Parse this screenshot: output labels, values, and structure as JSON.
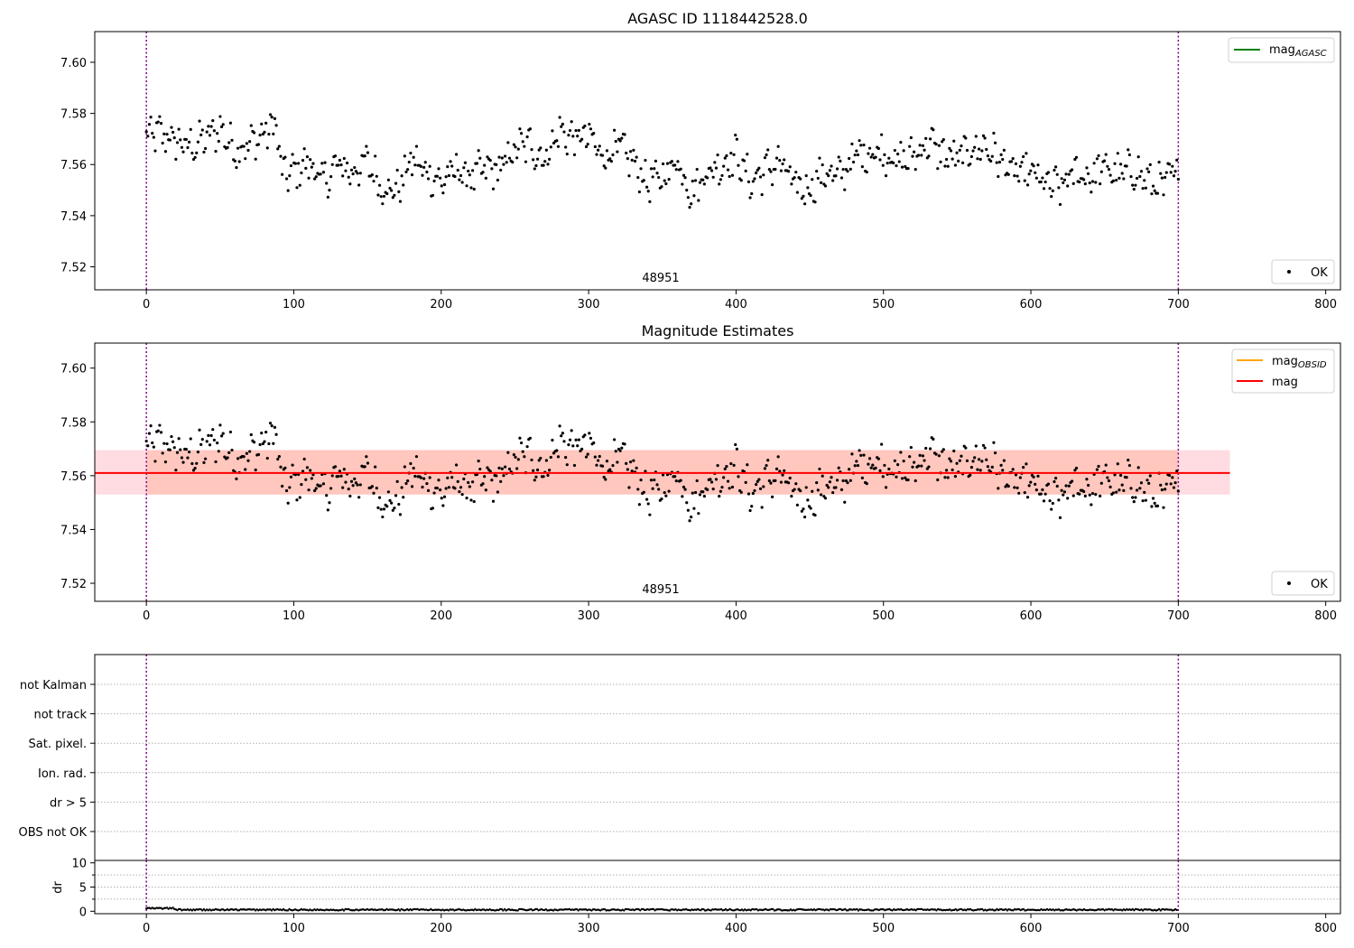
{
  "colors": {
    "points": "#000000",
    "vline": "#800080",
    "agasc_line": "#008000",
    "obsid_line": "#ffa500",
    "mag_line": "#ff0000",
    "band_outer": "#ffc0cb",
    "band_inner": "#ffa07a",
    "grid": "#b0b0b0"
  },
  "chart_data": [
    {
      "type": "scatter",
      "title": "AGASC ID 1118442528.0",
      "annotation": "48951",
      "xlim": [
        -35,
        810
      ],
      "ylim": [
        7.511,
        7.612
      ],
      "xticks": [
        0,
        100,
        200,
        300,
        400,
        500,
        600,
        700,
        800
      ],
      "xtick_labels": [
        "0",
        "100",
        "200",
        "300",
        "400",
        "500",
        "600",
        "700",
        "800"
      ],
      "yticks": [
        7.52,
        7.54,
        7.56,
        7.58,
        7.6
      ],
      "ytick_labels": [
        "7.52",
        "7.54",
        "7.56",
        "7.58",
        "7.60"
      ],
      "vlines": [
        0,
        700
      ],
      "legend_upper": [
        {
          "label": "mag",
          "subscript": "AGASC",
          "line_color": "#008000"
        }
      ],
      "legend_lower": [
        {
          "label": "OK",
          "marker": "dot"
        }
      ],
      "series": [
        {
          "name": "OK",
          "n_points": 700
        }
      ],
      "point_trend": [
        [
          0,
          7.571
        ],
        [
          10,
          7.572
        ],
        [
          20,
          7.569
        ],
        [
          30,
          7.567
        ],
        [
          40,
          7.57
        ],
        [
          50,
          7.574
        ],
        [
          60,
          7.566
        ],
        [
          70,
          7.568
        ],
        [
          80,
          7.572
        ],
        [
          88,
          7.576
        ],
        [
          92,
          7.556
        ],
        [
          100,
          7.557
        ],
        [
          110,
          7.561
        ],
        [
          120,
          7.553
        ],
        [
          130,
          7.56
        ],
        [
          140,
          7.557
        ],
        [
          150,
          7.561
        ],
        [
          160,
          7.551
        ],
        [
          170,
          7.55
        ],
        [
          180,
          7.562
        ],
        [
          190,
          7.557
        ],
        [
          200,
          7.553
        ],
        [
          210,
          7.558
        ],
        [
          220,
          7.555
        ],
        [
          230,
          7.558
        ],
        [
          240,
          7.558
        ],
        [
          250,
          7.566
        ],
        [
          260,
          7.568
        ],
        [
          270,
          7.562
        ],
        [
          280,
          7.573
        ],
        [
          290,
          7.57
        ],
        [
          300,
          7.571
        ],
        [
          310,
          7.563
        ],
        [
          320,
          7.567
        ],
        [
          330,
          7.561
        ],
        [
          340,
          7.553
        ],
        [
          350,
          7.555
        ],
        [
          360,
          7.562
        ],
        [
          370,
          7.549
        ],
        [
          380,
          7.557
        ],
        [
          390,
          7.56
        ],
        [
          400,
          7.564
        ],
        [
          410,
          7.553
        ],
        [
          420,
          7.558
        ],
        [
          430,
          7.561
        ],
        [
          440,
          7.551
        ],
        [
          450,
          7.551
        ],
        [
          460,
          7.557
        ],
        [
          470,
          7.555
        ],
        [
          480,
          7.563
        ],
        [
          490,
          7.565
        ],
        [
          500,
          7.565
        ],
        [
          510,
          7.561
        ],
        [
          520,
          7.563
        ],
        [
          530,
          7.569
        ],
        [
          540,
          7.564
        ],
        [
          550,
          7.562
        ],
        [
          560,
          7.566
        ],
        [
          570,
          7.567
        ],
        [
          580,
          7.561
        ],
        [
          590,
          7.556
        ],
        [
          600,
          7.557
        ],
        [
          610,
          7.552
        ],
        [
          620,
          7.551
        ],
        [
          630,
          7.557
        ],
        [
          640,
          7.555
        ],
        [
          650,
          7.559
        ],
        [
          660,
          7.556
        ],
        [
          670,
          7.558
        ],
        [
          680,
          7.553
        ],
        [
          690,
          7.552
        ],
        [
          700,
          7.558
        ]
      ]
    },
    {
      "type": "scatter",
      "title": "Magnitude Estimates",
      "annotation": "48951",
      "xlim": [
        -35,
        810
      ],
      "ylim": [
        7.5133,
        7.6093
      ],
      "xticks": [
        0,
        100,
        200,
        300,
        400,
        500,
        600,
        700,
        800
      ],
      "xtick_labels": [
        "0",
        "100",
        "200",
        "300",
        "400",
        "500",
        "600",
        "700",
        "800"
      ],
      "yticks": [
        7.52,
        7.54,
        7.56,
        7.58,
        7.6
      ],
      "ytick_labels": [
        "7.52",
        "7.54",
        "7.56",
        "7.58",
        "7.60"
      ],
      "vlines": [
        0,
        700
      ],
      "mag_line": {
        "y": 7.561,
        "x_range": [
          -35,
          735
        ]
      },
      "band_outer": {
        "y_range": [
          7.553,
          7.5695
        ],
        "x_range": [
          -35,
          735
        ]
      },
      "band_inner": {
        "y_range": [
          7.553,
          7.5695
        ],
        "x_range": [
          0,
          700
        ]
      },
      "legend_upper": [
        {
          "label": "mag",
          "subscript": "OBSID",
          "line_color": "#ffa500"
        },
        {
          "label": "mag",
          "subscript": "",
          "line_color": "#ff0000"
        }
      ],
      "legend_lower": [
        {
          "label": "OK",
          "marker": "dot"
        }
      ],
      "series": [
        {
          "name": "OK",
          "n_points": 700
        }
      ]
    },
    {
      "type": "scatter",
      "title": "",
      "xlim": [
        -35,
        810
      ],
      "yticks_categorical": [
        "not Kalman",
        "not track",
        "Sat. pixel.",
        "Ion. rad.",
        "dr > 5",
        "OBS not OK"
      ],
      "vlines": [
        0,
        700
      ],
      "series": []
    },
    {
      "type": "line",
      "title": "",
      "ylabel": "dr",
      "xlim": [
        -35,
        810
      ],
      "ylim": [
        -0.5,
        10.5
      ],
      "xticks": [
        0,
        100,
        200,
        300,
        400,
        500,
        600,
        700,
        800
      ],
      "xtick_labels": [
        "0",
        "100",
        "200",
        "300",
        "400",
        "500",
        "600",
        "700",
        "800"
      ],
      "yticks": [
        0,
        5,
        10
      ],
      "ytick_labels": [
        "0",
        "5",
        "10"
      ],
      "vlines": [
        0,
        700
      ],
      "series": [
        {
          "name": "dr",
          "typical_value": 0.3,
          "n_points": 700
        }
      ]
    }
  ]
}
